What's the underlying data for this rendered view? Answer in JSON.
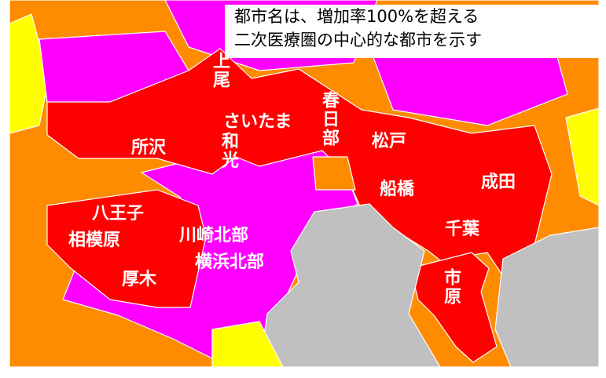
{
  "note": {
    "lines": [
      "都市名は、増加率100%を超える",
      "二次医療圏の中心的な都市を示す"
    ]
  },
  "cities": [
    "上尾",
    "さいたま",
    "春日部",
    "和光",
    "所沢",
    "松戸",
    "船橋",
    "成田",
    "八王子",
    "相模原",
    "川崎北部",
    "横浜北部",
    "千葉",
    "厚木",
    "市原"
  ]
}
